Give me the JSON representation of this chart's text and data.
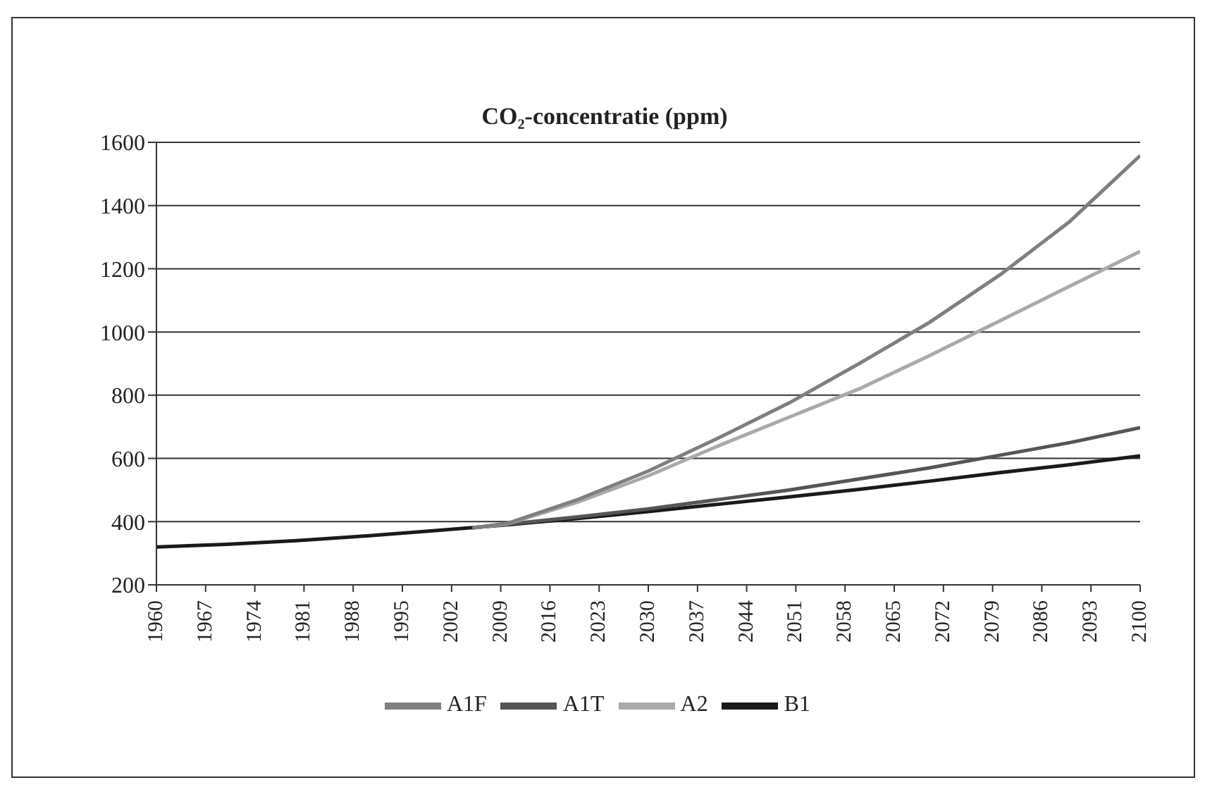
{
  "chart_data": {
    "type": "line",
    "title": "CO₂-concentratie (ppm)",
    "xlim": [
      1960,
      2100
    ],
    "xticks": [
      1960,
      1967,
      1974,
      1981,
      1988,
      1995,
      2002,
      2009,
      2016,
      2023,
      2030,
      2037,
      2044,
      2051,
      2058,
      2065,
      2072,
      2079,
      2086,
      2093,
      2100
    ],
    "ylim": [
      200,
      1600
    ],
    "yticks": [
      200,
      400,
      600,
      800,
      1000,
      1200,
      1400,
      1600
    ],
    "grid": "y",
    "legend": "bottom",
    "marker": "none",
    "line_style": "solid",
    "series": [
      {
        "name": "B1",
        "color": "#1a1a1a",
        "x": [
          1960,
          1970,
          1980,
          1990,
          2000,
          2010,
          2020,
          2030,
          2040,
          2050,
          2060,
          2070,
          2080,
          2090,
          2100
        ],
        "values": [
          320,
          328,
          340,
          355,
          372,
          390,
          410,
          432,
          455,
          478,
          502,
          528,
          555,
          580,
          608
        ]
      },
      {
        "name": "A1T",
        "color": "#555555",
        "x": [
          2005,
          2010,
          2020,
          2030,
          2040,
          2050,
          2060,
          2070,
          2080,
          2090,
          2100
        ],
        "values": [
          380,
          392,
          415,
          440,
          470,
          500,
          535,
          570,
          610,
          650,
          697
        ]
      },
      {
        "name": "A2",
        "color": "#aaaaaa",
        "x": [
          2005,
          2010,
          2020,
          2030,
          2040,
          2050,
          2060,
          2070,
          2080,
          2090,
          2100
        ],
        "values": [
          380,
          393,
          462,
          545,
          640,
          730,
          820,
          925,
          1035,
          1145,
          1255
        ]
      },
      {
        "name": "A1F",
        "color": "#7f7f7f",
        "x": [
          2005,
          2010,
          2020,
          2030,
          2040,
          2050,
          2060,
          2070,
          2080,
          2090,
          2100
        ],
        "values": [
          380,
          395,
          470,
          560,
          665,
          775,
          900,
          1030,
          1180,
          1350,
          1558
        ]
      }
    ]
  }
}
